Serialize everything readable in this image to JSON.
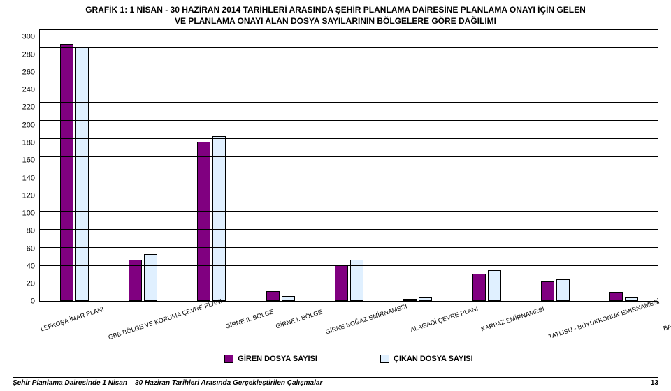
{
  "header": {
    "line1": "GRAFİK 1: 1 NİSAN - 30 HAZİRAN 2014 TARİHLERİ ARASINDA ŞEHİR PLANLAMA DAİRESİNE PLANLAMA ONAYI İÇİN GELEN",
    "line2": "VE PLANLAMA ONAYI ALAN DOSYA SAYILARININ BÖLGELERE GÖRE DAĞILIMI"
  },
  "chart": {
    "type": "bar",
    "ylim": [
      0,
      300
    ],
    "ytick_step": 20,
    "yticks": [
      300,
      280,
      260,
      240,
      220,
      200,
      180,
      160,
      140,
      120,
      100,
      80,
      60,
      40,
      20,
      0
    ],
    "grid_color": "#000000",
    "background_color": "#ffffff",
    "series_colors": [
      "#800080",
      "#e0f0ff"
    ],
    "categories": [
      "LEFKOŞA İMAR PLANI",
      "GBB BÖLGE VE KORUMA ÇEVRE PLANI",
      "GİRNE II. BÖLGE",
      "GİRNE I. BÖLGE",
      "GİRNE BOĞAZ EMİRNAMESİ",
      "ALAGADİ ÇEVRE PLANI",
      "KARPAZ EMİRNAMESİ",
      "TATLISU - BÜYÜKKONUK EMİRNAMESİ",
      "BAFRA EMİRNAMESİ"
    ],
    "series": [
      {
        "name": "GİREN DOSYA SAYISI",
        "values": [
          284,
          46,
          176,
          11,
          40,
          3,
          30,
          22,
          10
        ]
      },
      {
        "name": "ÇIKAN DOSYA SAYISI",
        "values": [
          280,
          52,
          182,
          6,
          46,
          4,
          34,
          24,
          4
        ]
      }
    ]
  },
  "legend": {
    "items": [
      {
        "label": "GİREN DOSYA SAYISI",
        "color": "#800080"
      },
      {
        "label": "ÇIKAN DOSYA SAYISI",
        "color": "#e0f0ff"
      }
    ]
  },
  "footer": {
    "text": "Şehir Planlama Dairesinde 1 Nisan – 30 Haziran Tarihleri Arasında Gerçekleştirilen Çalışmalar",
    "page": "13"
  }
}
